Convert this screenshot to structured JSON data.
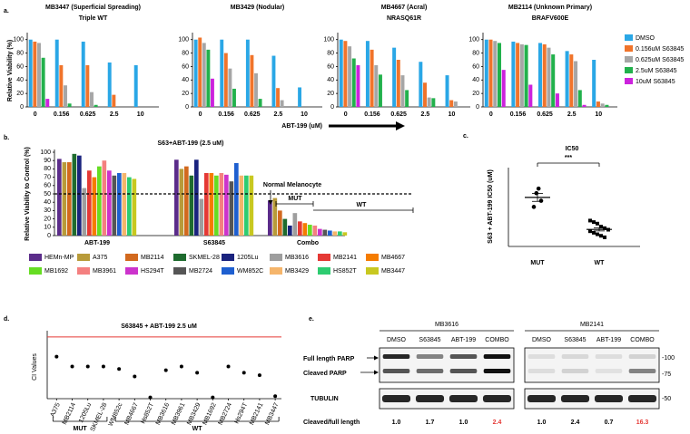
{
  "panel_labels": [
    "a.",
    "b.",
    "c.",
    "d.",
    "e."
  ],
  "chart_data": [
    {
      "type": "grouped-bar-multiples",
      "ylabel": "Relative Viability (%)",
      "xlabel": "ABT-199 (uM)",
      "categories": [
        "0",
        "0.156",
        "0.625",
        "2.5",
        "10"
      ],
      "series": [
        {
          "name": "DMSO",
          "color": "#2aa7e6"
        },
        {
          "name": "0.156uM S63845",
          "color": "#f0742b"
        },
        {
          "name": "0.625uM S63845",
          "color": "#a6a6a6"
        },
        {
          "name": "2.5uM S63845",
          "color": "#22b14c"
        },
        {
          "name": "10uM S63845",
          "color": "#cc22dd"
        }
      ],
      "ylim": [
        0,
        105
      ],
      "yticks": [
        0,
        20,
        40,
        60,
        80,
        100
      ],
      "panels": [
        {
          "title": "MB3447  (Superficial Spreading)",
          "subtitle": "Triple WT",
          "values": [
            [
              100,
              100,
              97,
              66,
              62
            ],
            [
              97,
              62,
              62,
              18,
              null
            ],
            [
              95,
              32,
              22,
              null,
              null
            ],
            [
              73,
              5,
              3,
              null,
              null
            ],
            [
              12,
              null,
              null,
              null,
              null
            ]
          ]
        },
        {
          "title": "MB3429  (Nodular)",
          "values": [
            [
              100,
              100,
              100,
              76,
              29
            ],
            [
              103,
              80,
              77,
              28,
              null
            ],
            [
              95,
              57,
              50,
              10,
              null
            ],
            [
              85,
              27,
              12,
              null,
              null
            ],
            [
              42,
              null,
              null,
              null,
              null
            ]
          ]
        },
        {
          "title": "MB4667  (Acral)",
          "subtitle": "NRASQ61R",
          "values": [
            [
              100,
              98,
              88,
              67,
              47
            ],
            [
              98,
              85,
              70,
              36,
              10
            ],
            [
              90,
              62,
              47,
              14,
              8
            ],
            [
              72,
              48,
              25,
              13,
              null
            ],
            [
              62,
              null,
              null,
              null,
              null
            ]
          ]
        },
        {
          "title": "MB2114  (Unknown Primary)",
          "subtitle": "BRAFV600E",
          "values": [
            [
              100,
              97,
              95,
              83,
              70
            ],
            [
              100,
              95,
              93,
              78,
              8
            ],
            [
              98,
              93,
              88,
              68,
              5
            ],
            [
              95,
              92,
              78,
              25,
              3
            ],
            [
              55,
              33,
              20,
              3,
              null
            ]
          ]
        }
      ]
    },
    {
      "type": "bar",
      "title": "S63+ABT-199 (2.5 uM)",
      "ylabel": "Relative Viability to Control (%)",
      "categories": [
        "ABT-199",
        "S63845",
        "Combo"
      ],
      "series": [
        {
          "name": "HEMn-MP",
          "color": "#5b2c8a",
          "values": [
            92,
            91,
            42
          ]
        },
        {
          "name": "A375",
          "color": "#b89b3a",
          "values": [
            88,
            80,
            45
          ]
        },
        {
          "name": "MB2114",
          "color": "#d2691e",
          "values": [
            88,
            83,
            30
          ]
        },
        {
          "name": "SKMEL-28",
          "color": "#1e6b2e",
          "values": [
            98,
            72,
            20
          ]
        },
        {
          "name": "1205Lu",
          "color": "#1a237e",
          "values": [
            96,
            91,
            12
          ]
        },
        {
          "name": "MB3616",
          "color": "#9e9e9e",
          "values": [
            57,
            44,
            27
          ]
        },
        {
          "name": "MB2141",
          "color": "#e53935",
          "values": [
            78,
            75,
            17
          ]
        },
        {
          "name": "MB4667",
          "color": "#f57c00",
          "values": [
            70,
            75,
            15
          ]
        },
        {
          "name": "MB1692",
          "color": "#66dd22",
          "values": [
            83,
            72,
            13
          ]
        },
        {
          "name": "MB3961",
          "color": "#f48080",
          "values": [
            90,
            75,
            12
          ]
        },
        {
          "name": "HS294T",
          "color": "#cc33cc",
          "values": [
            78,
            73,
            8
          ]
        },
        {
          "name": "MB2724",
          "color": "#555555",
          "values": [
            72,
            65,
            7
          ]
        },
        {
          "name": "WM852C",
          "color": "#1e5fd0",
          "values": [
            75,
            87,
            6
          ]
        },
        {
          "name": "MB3429",
          "color": "#f5b56b",
          "values": [
            75,
            72,
            5
          ]
        },
        {
          "name": "HS852T",
          "color": "#2ecc71",
          "values": [
            70,
            72,
            5
          ]
        },
        {
          "name": "MB3447",
          "color": "#c8c820",
          "values": [
            68,
            72,
            4
          ]
        }
      ],
      "ylim": [
        0,
        100
      ],
      "yticks": [
        0,
        10,
        20,
        30,
        40,
        50,
        60,
        70,
        80,
        90,
        100
      ],
      "reference_line": 50,
      "annotations": [
        "Normal Melanocyte",
        "MUT",
        "WT"
      ]
    },
    {
      "type": "dot",
      "title": "IC50",
      "ylabel": "S63 + ABT-199 IC50 (uM)",
      "categories": [
        "MUT",
        "WT"
      ],
      "points": [
        [
          1.9,
          1.75,
          1.5,
          1.3
        ],
        [
          0.85,
          0.8,
          0.75,
          0.65,
          0.6,
          0.55,
          0.5,
          0.45,
          0.4,
          0.35,
          0.3
        ]
      ],
      "means": [
        1.61,
        0.56
      ],
      "sem": [
        0.13,
        0.05
      ],
      "ylim": [
        0,
        2.5
      ],
      "significance": "***"
    },
    {
      "type": "dot",
      "title": "S63845 + ABT-199 2.5 uM",
      "ylabel": "CI Values",
      "categories": [
        "A375",
        "MB2114",
        "1205Lu",
        "SKMEL-28",
        "WM852c",
        "MB4667",
        "Hs852T",
        "MB3616",
        "MB3961",
        "MB3429",
        "MB1692",
        "MB2724",
        "Hs294T",
        "MB2141",
        "MB3447"
      ],
      "values": [
        0.34,
        0.26,
        0.26,
        0.26,
        0.24,
        0.18,
        0.01,
        0.23,
        0.26,
        0.21,
        0.01,
        0.26,
        0.21,
        0.19,
        0.02
      ],
      "ylim": [
        0,
        0.55
      ],
      "threshold": 0.5,
      "threshold_color": "#e53935",
      "group_labels": [
        "MUT",
        "WT"
      ]
    }
  ],
  "blot": {
    "cell_lines": [
      "MB3616",
      "MB2141"
    ],
    "lanes": [
      "DMSO",
      "S63845",
      "ABT-199",
      "COMBO"
    ],
    "rows": [
      "Full length PARP",
      "Cleaved PARP",
      "TUBULIN"
    ],
    "markers": [
      "-100",
      "-75",
      "-50"
    ],
    "ratio_label": "Cleaved/full length",
    "ratios": [
      [
        "1.0",
        "1.7",
        "1.0",
        "2.4"
      ],
      [
        "1.0",
        "2.4",
        "0.7",
        "16.3"
      ]
    ]
  }
}
